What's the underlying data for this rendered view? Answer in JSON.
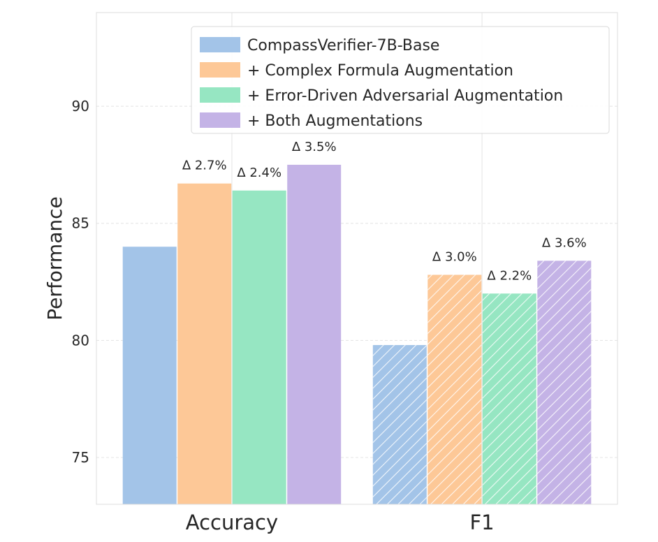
{
  "chart_data": {
    "type": "bar",
    "title": "",
    "xlabel": "",
    "ylabel": "Performance",
    "ylim": [
      73,
      94
    ],
    "yticks": [
      75,
      80,
      85,
      90
    ],
    "grid": true,
    "legend_position": "top-right",
    "categories": [
      "Accuracy",
      "F1"
    ],
    "series": [
      {
        "name": "CompassVerifier-7B-Base",
        "color": "#a3c4e8",
        "values": [
          84.0,
          79.8
        ],
        "deltas": [
          null,
          null
        ]
      },
      {
        "name": "+ Complex Formula Augmentation",
        "color": "#fdc897",
        "values": [
          86.7,
          82.8
        ],
        "deltas": [
          "Δ 2.7%",
          "Δ 3.0%"
        ]
      },
      {
        "name": "+ Error-Driven Adversarial Augmentation",
        "color": "#96e6c2",
        "values": [
          86.4,
          82.0
        ],
        "deltas": [
          "Δ 2.4%",
          "Δ 2.2%"
        ]
      },
      {
        "name": "+ Both Augmentations",
        "color": "#c4b3e6",
        "values": [
          87.5,
          83.4
        ],
        "deltas": [
          "Δ 3.5%",
          "Δ 3.6%"
        ]
      }
    ],
    "hatched_categories": [
      "F1"
    ]
  }
}
